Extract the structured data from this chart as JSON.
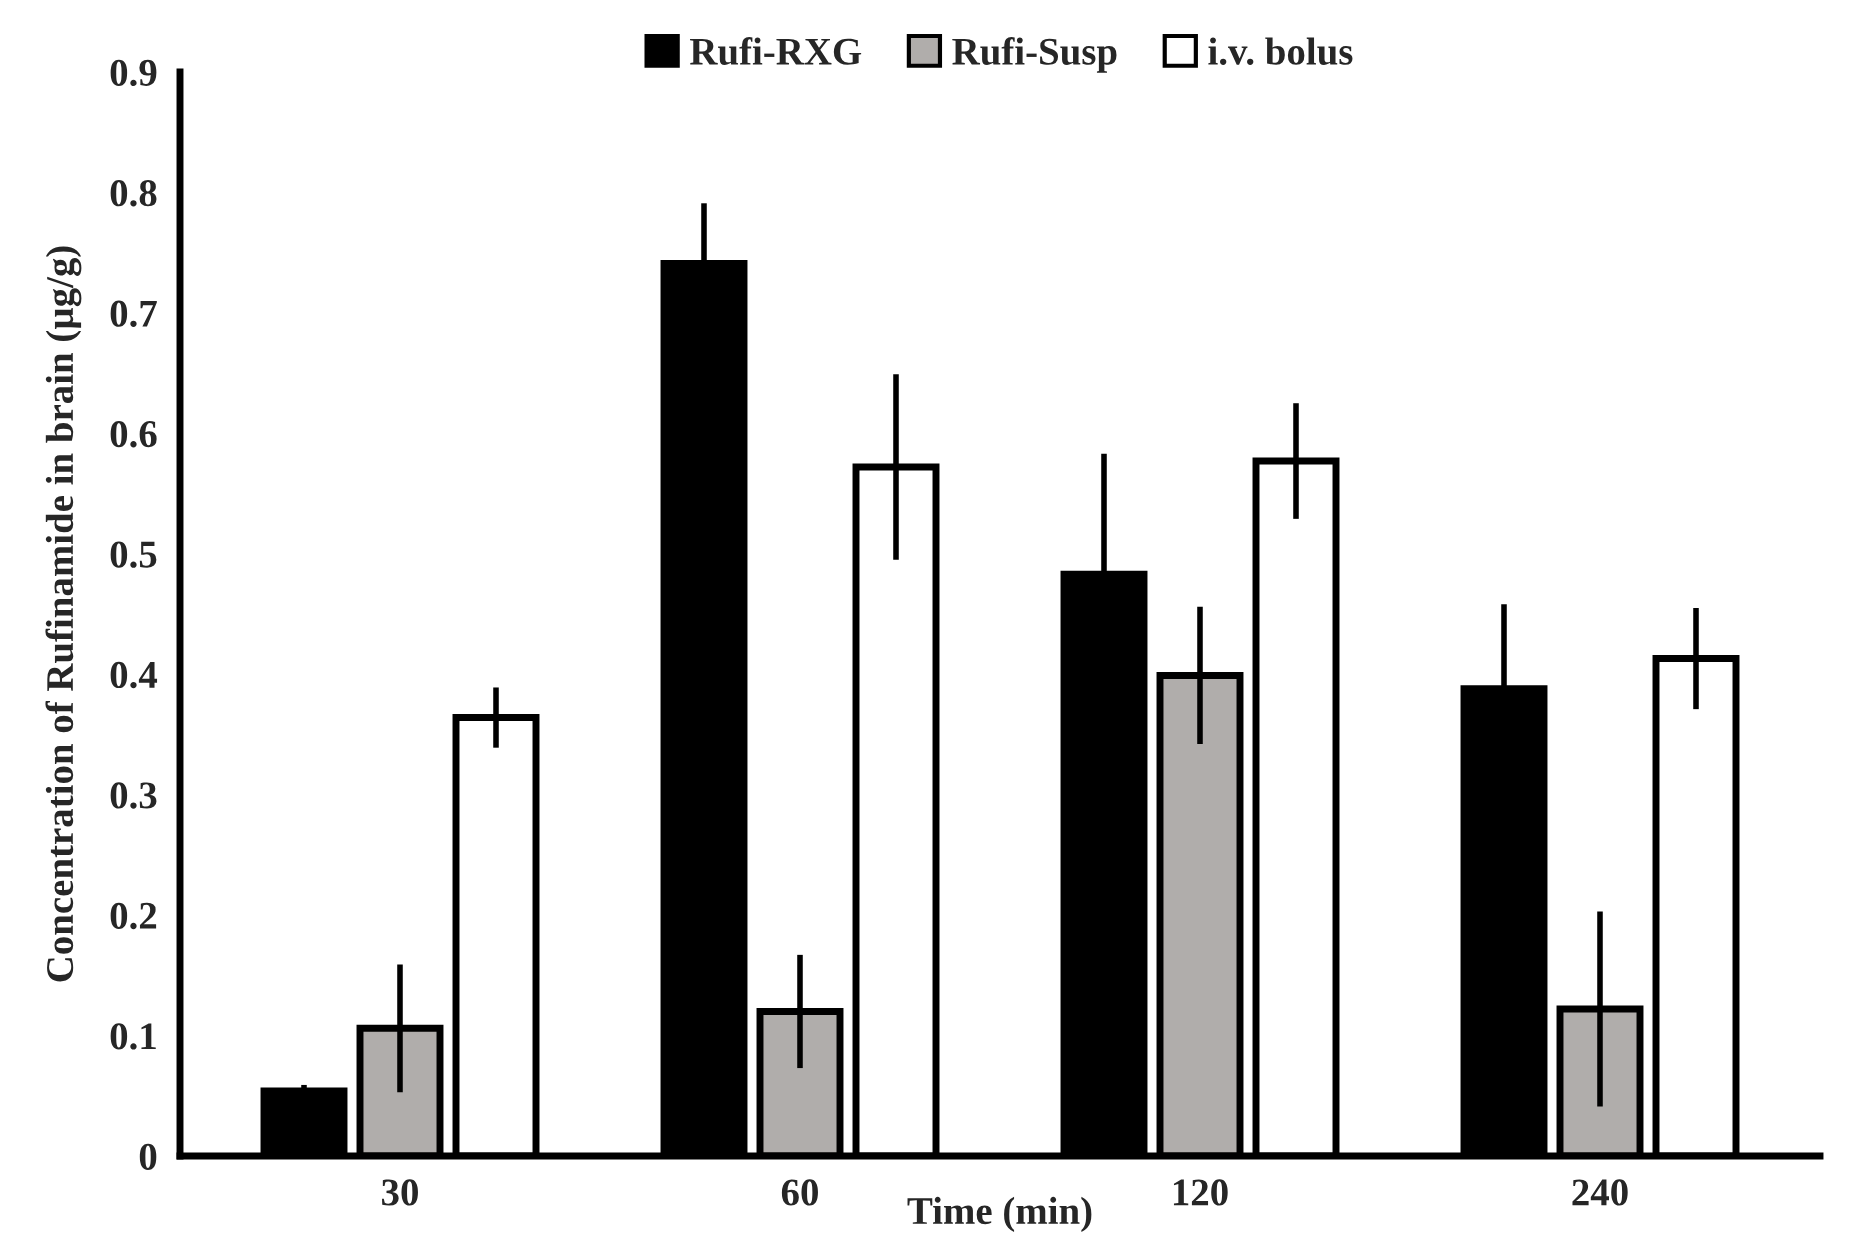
{
  "chart_data": {
    "type": "bar",
    "xlabel": "Time (min)",
    "ylabel": "Concentration of Rufinamide in brain (µg/g)",
    "categories": [
      "30",
      "60",
      "120",
      "240"
    ],
    "series": [
      {
        "name": "Rufi-RXG",
        "color": "#000000",
        "values": [
          0.054,
          0.741,
          0.483,
          0.388
        ],
        "errors": [
          0.005,
          0.05,
          0.1,
          0.07
        ]
      },
      {
        "name": "Rufi-Susp",
        "color": "#b0adab",
        "values": [
          0.106,
          0.12,
          0.399,
          0.122
        ],
        "errors": [
          0.053,
          0.047,
          0.057,
          0.081
        ]
      },
      {
        "name": "i.v. bolus",
        "color": "#ffffff",
        "values": [
          0.364,
          0.572,
          0.577,
          0.413
        ],
        "errors": [
          0.025,
          0.077,
          0.048,
          0.042
        ]
      }
    ],
    "ylim": [
      0,
      0.9
    ],
    "yticks": [
      0,
      0.1,
      0.2,
      0.3,
      0.4,
      0.5,
      0.6,
      0.7,
      0.8,
      0.9
    ],
    "grid": false,
    "legend": "top"
  }
}
